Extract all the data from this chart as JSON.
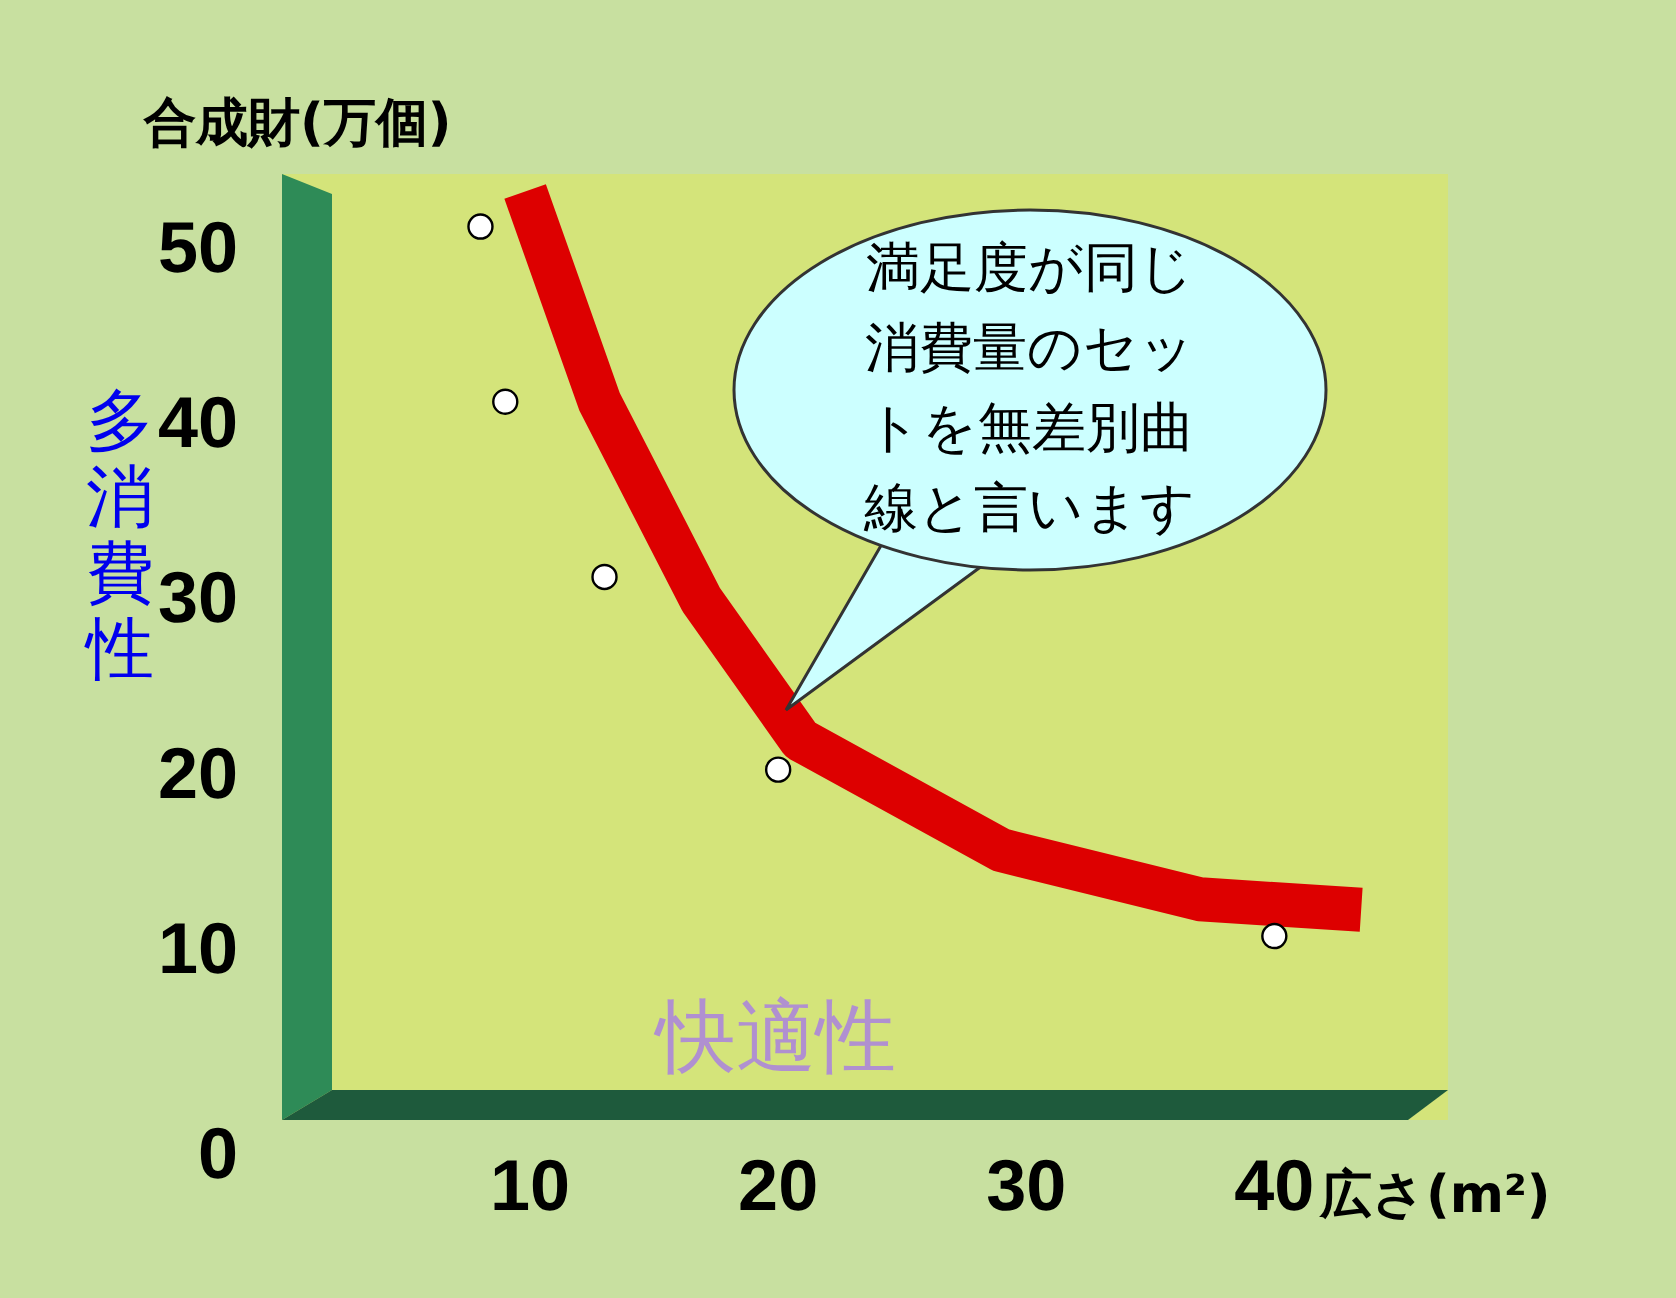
{
  "chart_data": {
    "type": "line",
    "ylabel": "合成財(万個)",
    "xlabel": "広さ(m²)",
    "xlim": [
      0,
      47
    ],
    "ylim": [
      0,
      54
    ],
    "xticks": [
      10,
      20,
      30,
      40
    ],
    "yticks": [
      0,
      10,
      20,
      30,
      40,
      50
    ],
    "grid": false,
    "series": [
      {
        "color": "#dd0000",
        "x": [
          9.8,
          12.8,
          16.9,
          20.9,
          29,
          37,
          43.5
        ],
        "values": [
          53,
          41,
          29.7,
          21.7,
          15.4,
          12.6,
          12
        ]
      },
      {
        "type": "scatter",
        "color": "#ffffff",
        "marker": "circle",
        "x": [
          8,
          9,
          13,
          20,
          40
        ],
        "values": [
          51,
          41,
          31,
          20,
          10.5
        ]
      }
    ],
    "annotations": [
      "満足度が同じ消費量のセットを無差別曲線と言います",
      "快適性",
      "多消費性"
    ]
  }
}
